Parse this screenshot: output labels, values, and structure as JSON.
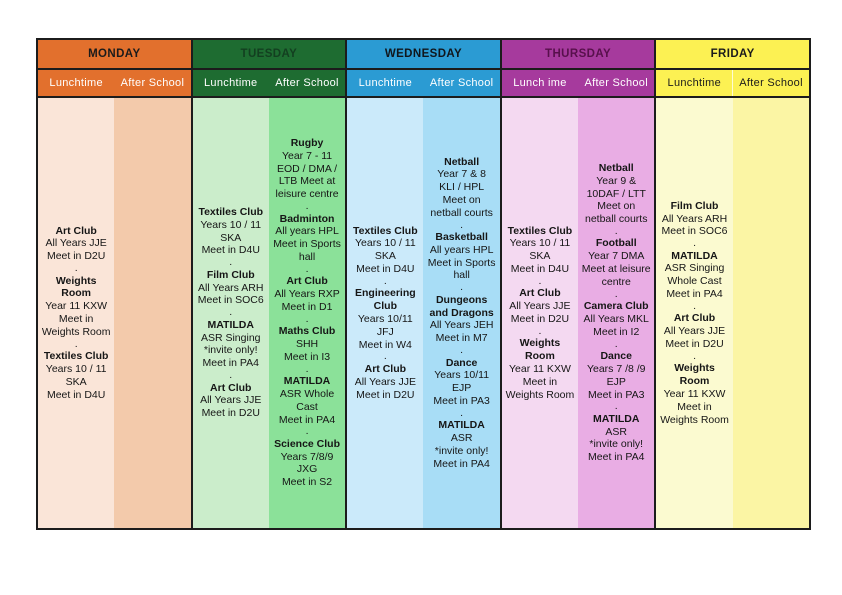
{
  "table": {
    "separator": ".",
    "border_color": "#1c1c1c",
    "days": [
      {
        "name": "MONDAY",
        "header_bg": "#E2702D",
        "header_text": "#1b1b1b",
        "subheader_text": "#FFFFFF",
        "lunch_label": "Lunchtime",
        "after_label": "After School",
        "lunch_bg": "#FAE5D8",
        "after_bg": "#F3CAAB",
        "divider": "",
        "lunch_entries": [
          {
            "title": "Art Club",
            "lines": [
              "All Years JJE",
              "Meet in D2U"
            ]
          },
          {
            "title": "Weights Room",
            "lines": [
              "Year 11 KXW",
              "Meet in Weights Room"
            ]
          },
          {
            "title": "Textiles Club",
            "lines": [
              "Years 10 / 11 SKA",
              "Meet in D4U"
            ]
          }
        ],
        "after_entries": []
      },
      {
        "name": "TUESDAY",
        "header_bg": "#1E6C31",
        "header_text": "#133F20",
        "subheader_text": "#FFFFFF",
        "lunch_label": "Lunchtime",
        "after_label": "After School",
        "lunch_bg": "#CBEDCB",
        "after_bg": "#8BE199",
        "divider": "",
        "lunch_entries": [
          {
            "title": "Textiles Club",
            "lines": [
              "Years 10 / 11 SKA",
              "Meet in D4U"
            ]
          },
          {
            "title": "Film Club",
            "lines": [
              "All Years ARH",
              "Meet in SOC6"
            ]
          },
          {
            "title": "MATILDA",
            "lines": [
              "ASR Singing",
              "*invite only!",
              "Meet in PA4"
            ]
          },
          {
            "title": "Art Club",
            "lines": [
              "All Years JJE",
              "Meet in D2U"
            ]
          }
        ],
        "after_entries": [
          {
            "title": "Rugby",
            "lines": [
              "Year 7 - 11",
              "EOD / DMA / LTB Meet at leisure centre"
            ]
          },
          {
            "title": "Badminton",
            "lines": [
              "All years HPL",
              "Meet in Sports hall"
            ]
          },
          {
            "title": "Art Club",
            "lines": [
              "All Years RXP",
              "Meet in D1"
            ]
          },
          {
            "title": "Maths Club",
            "lines": [
              "SHH",
              "Meet in I3"
            ]
          },
          {
            "title": "MATILDA",
            "lines": [
              "ASR Whole Cast",
              "Meet in PA4"
            ]
          },
          {
            "title": "Science Club",
            "lines": [
              "Years 7/8/9 JXG",
              "Meet in S2"
            ]
          }
        ]
      },
      {
        "name": "WEDNESDAY",
        "header_bg": "#2B9BD3",
        "header_text": "#10161c",
        "subheader_text": "#FFFFFF",
        "lunch_label": "Lunchtime",
        "after_label": "After School",
        "lunch_bg": "#CBEAFA",
        "after_bg": "#A8DDF6",
        "divider": "",
        "lunch_entries": [
          {
            "title": "Textiles Club",
            "lines": [
              "Years 10 / 11 SKA",
              "Meet in D4U"
            ]
          },
          {
            "title": "Engineering Club",
            "lines": [
              "Years 10/11 JFJ",
              "Meet in W4"
            ]
          },
          {
            "title": "Art Club",
            "lines": [
              "All Years JJE",
              "Meet in D2U"
            ]
          }
        ],
        "after_entries": [
          {
            "title": "Netball",
            "lines": [
              "Year 7 & 8",
              "KLI / HPL",
              "Meet on netball courts"
            ]
          },
          {
            "title": "Basketball",
            "lines": [
              "All years HPL",
              "Meet in Sports hall"
            ]
          },
          {
            "title": "Dungeons and Dragons",
            "lines": [
              "All Years JEH",
              "Meet in M7"
            ]
          },
          {
            "title": "Dance",
            "lines": [
              "Years 10/11 EJP",
              "Meet in PA3"
            ]
          },
          {
            "title": "MATILDA",
            "lines": [
              "ASR",
              "*invite only!",
              "Meet in PA4"
            ]
          }
        ]
      },
      {
        "name": "THURSDAY",
        "header_bg": "#A63A9D",
        "header_text": "#58104C",
        "subheader_text": "#FFFFFF",
        "lunch_label": "Lunch ime",
        "after_label": "After School",
        "lunch_bg": "#F4D9F1",
        "after_bg": "#E9ADE4",
        "divider": "",
        "lunch_entries": [
          {
            "title": "Textiles Club",
            "lines": [
              "Years 10 / 11 SKA",
              "Meet in D4U"
            ]
          },
          {
            "title": "Art Club",
            "lines": [
              "All Years JJE",
              "Meet in D2U"
            ]
          },
          {
            "title": "Weights Room",
            "lines": [
              "Year 11 KXW",
              "Meet in Weights Room"
            ]
          }
        ],
        "after_entries": [
          {
            "title": "Netball",
            "lines": [
              "Year 9 & 10DAF / LTT",
              "Meet on netball courts"
            ]
          },
          {
            "title": "Football",
            "lines": [
              "Year 7 DMA",
              "Meet at leisure centre"
            ]
          },
          {
            "title": "Camera Club",
            "lines": [
              "All Years MKL",
              "Meet in I2"
            ]
          },
          {
            "title": "Dance",
            "lines": [
              "Years 7 /8 /9 EJP",
              "Meet in PA3"
            ]
          },
          {
            "title": "MATILDA",
            "lines": [
              "ASR",
              "*invite only!",
              "Meet in PA4"
            ]
          }
        ]
      },
      {
        "name": "FRIDAY",
        "header_bg": "#FCF153",
        "header_text": "#1b1b1b",
        "subheader_text": "#1b1b1b",
        "lunch_label": "Lunchtime",
        "after_label": "After School",
        "lunch_bg": "#FBFAD0",
        "after_bg": "#FBF5A4",
        "divider": "rgba(255,255,255,0.75)",
        "lunch_entries": [
          {
            "title": "Film Club",
            "lines": [
              "All Years ARH Meet in SOC6"
            ]
          },
          {
            "title": "MATILDA",
            "lines": [
              "ASR Singing Whole Cast",
              "Meet in PA4"
            ]
          },
          {
            "title": "Art Club",
            "lines": [
              "All Years JJE",
              "Meet in D2U"
            ]
          },
          {
            "title": "Weights Room",
            "lines": [
              "Year 11 KXW",
              "Meet in Weights Room"
            ]
          }
        ],
        "after_entries": []
      }
    ]
  }
}
